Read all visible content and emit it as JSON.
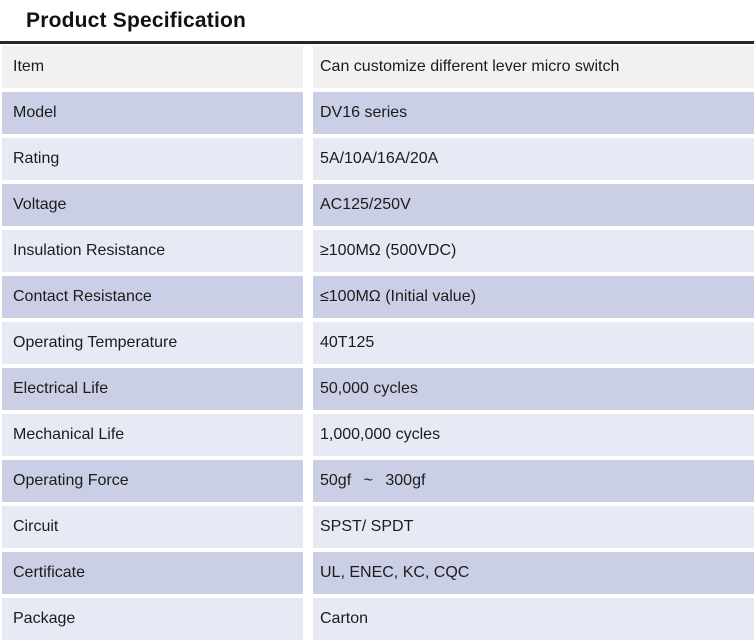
{
  "title": "Product Specification",
  "colors": {
    "row_header": "#f1f1f1",
    "row_dark": "#cbcfe5",
    "row_light": "#e7e9f4",
    "top_border": "#282828",
    "text": "#1c1c1c"
  },
  "table": {
    "rows": [
      {
        "label": "Item",
        "value": "Can customize different lever micro switch"
      },
      {
        "label": "Model",
        "value": "DV16 series"
      },
      {
        "label": "Rating",
        "value": "5A/10A/16A/20A"
      },
      {
        "label": "Voltage",
        "value": "AC125/250V"
      },
      {
        "label": "Insulation Resistance",
        "value": "≥100MΩ (500VDC)"
      },
      {
        "label": "Contact Resistance",
        "value": "≤100MΩ (Initial value)"
      },
      {
        "label": "Operating Temperature",
        "value": "40T125"
      },
      {
        "label": "Electrical Life",
        "value": "50,000 cycles"
      },
      {
        "label": "Mechanical Life",
        "value": "1,000,000 cycles"
      },
      {
        "label": "Operating Force",
        "value": "50gf  ~  300gf"
      },
      {
        "label": "Circuit",
        "value": "SPST/ SPDT"
      },
      {
        "label": "Certificate",
        "value": "UL, ENEC, KC, CQC"
      },
      {
        "label": "Package",
        "value": "Carton"
      }
    ]
  }
}
